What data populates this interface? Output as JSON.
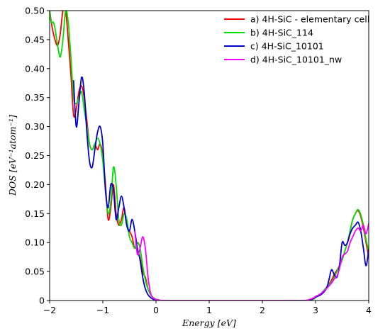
{
  "chart_data": {
    "type": "line",
    "xlabel": "Energy [eV]",
    "ylabel": "DOS [eV⁻¹atom⁻¹]",
    "xlim": [
      -2,
      4
    ],
    "ylim": [
      0,
      0.5
    ],
    "xticks": [
      -2,
      -1,
      0,
      1,
      2,
      3,
      4
    ],
    "yticks": [
      0,
      0.05,
      0.1,
      0.15,
      0.2,
      0.25,
      0.3,
      0.35,
      0.4,
      0.45,
      0.5
    ],
    "xtick_labels": [
      "−2",
      "−1",
      "0",
      "1",
      "2",
      "3",
      "4"
    ],
    "ytick_labels": [
      "0",
      "0.05",
      "0.10",
      "0.15",
      "0.20",
      "0.25",
      "0.30",
      "0.35",
      "0.40",
      "0.45",
      "0.50"
    ],
    "legend_position": "top-right",
    "grid": false,
    "series": [
      {
        "name": "a) 4H-SiC - elementary cell",
        "color": "#ff0000",
        "x": [
          -2.0,
          -1.95,
          -1.9,
          -1.85,
          -1.8,
          -1.75,
          -1.7,
          -1.65,
          -1.6,
          -1.55,
          -1.5,
          -1.45,
          -1.4,
          -1.35,
          -1.3,
          -1.25,
          -1.2,
          -1.15,
          -1.1,
          -1.05,
          -1.0,
          -0.95,
          -0.9,
          -0.85,
          -0.8,
          -0.75,
          -0.7,
          -0.65,
          -0.6,
          -0.55,
          -0.5,
          -0.45,
          -0.4,
          -0.35,
          -0.3,
          -0.25,
          -0.2,
          -0.15,
          -0.1,
          -0.05,
          0.0,
          0.05,
          0.1,
          0.2,
          0.5,
          1.0,
          1.5,
          2.0,
          2.5,
          2.8,
          2.95,
          3.0,
          3.1,
          3.2,
          3.3,
          3.35,
          3.4,
          3.45,
          3.5,
          3.55,
          3.6,
          3.65,
          3.7,
          3.75,
          3.8,
          3.85,
          3.9,
          3.95,
          4.0
        ],
        "y": [
          0.5,
          0.47,
          0.45,
          0.44,
          0.46,
          0.5,
          0.5,
          0.45,
          0.39,
          0.32,
          0.33,
          0.36,
          0.37,
          0.35,
          0.31,
          0.27,
          0.26,
          0.27,
          0.26,
          0.27,
          0.25,
          0.2,
          0.14,
          0.16,
          0.2,
          0.15,
          0.13,
          0.14,
          0.16,
          0.13,
          0.12,
          0.11,
          0.09,
          0.1,
          0.09,
          0.05,
          0.04,
          0.02,
          0.01,
          0.005,
          0.002,
          0.001,
          0.0,
          0.0,
          0.0,
          0.0,
          0.0,
          0.0,
          0.0,
          0.0,
          0.002,
          0.005,
          0.012,
          0.022,
          0.035,
          0.045,
          0.052,
          0.06,
          0.07,
          0.085,
          0.1,
          0.12,
          0.14,
          0.15,
          0.155,
          0.145,
          0.125,
          0.1,
          0.075
        ]
      },
      {
        "name": "b) 4H-SiC_114",
        "color": "#00e000",
        "x": [
          -2.0,
          -1.97,
          -1.93,
          -1.9,
          -1.85,
          -1.8,
          -1.75,
          -1.7,
          -1.65,
          -1.6,
          -1.55,
          -1.5,
          -1.45,
          -1.4,
          -1.35,
          -1.3,
          -1.25,
          -1.2,
          -1.15,
          -1.1,
          -1.05,
          -1.0,
          -0.95,
          -0.9,
          -0.85,
          -0.8,
          -0.75,
          -0.7,
          -0.65,
          -0.6,
          -0.55,
          -0.5,
          -0.45,
          -0.4,
          -0.35,
          -0.3,
          -0.25,
          -0.2,
          -0.15,
          -0.1,
          -0.05,
          0.0,
          0.05,
          0.1,
          0.2,
          0.5,
          1.0,
          1.5,
          2.0,
          2.5,
          2.8,
          2.95,
          3.0,
          3.1,
          3.2,
          3.3,
          3.35,
          3.4,
          3.45,
          3.5,
          3.55,
          3.6,
          3.65,
          3.7,
          3.75,
          3.8,
          3.85,
          3.9,
          3.95,
          4.0
        ],
        "y": [
          0.5,
          0.48,
          0.48,
          0.47,
          0.44,
          0.42,
          0.45,
          0.5,
          0.48,
          0.42,
          0.35,
          0.34,
          0.35,
          0.36,
          0.33,
          0.3,
          0.27,
          0.26,
          0.27,
          0.28,
          0.27,
          0.24,
          0.19,
          0.15,
          0.17,
          0.23,
          0.2,
          0.14,
          0.13,
          0.15,
          0.14,
          0.11,
          0.1,
          0.09,
          0.1,
          0.09,
          0.06,
          0.035,
          0.02,
          0.01,
          0.005,
          0.002,
          0.001,
          0.0,
          0.0,
          0.0,
          0.0,
          0.0,
          0.0,
          0.0,
          0.0,
          0.002,
          0.005,
          0.012,
          0.022,
          0.032,
          0.04,
          0.05,
          0.06,
          0.07,
          0.085,
          0.1,
          0.12,
          0.14,
          0.15,
          0.157,
          0.148,
          0.13,
          0.105,
          0.085
        ]
      },
      {
        "name": "c) 4H-SiC_10101",
        "color": "#0000cc",
        "x": [
          -1.55,
          -1.5,
          -1.45,
          -1.4,
          -1.35,
          -1.3,
          -1.25,
          -1.2,
          -1.15,
          -1.1,
          -1.05,
          -1.0,
          -0.95,
          -0.9,
          -0.85,
          -0.8,
          -0.75,
          -0.7,
          -0.65,
          -0.6,
          -0.55,
          -0.5,
          -0.45,
          -0.4,
          -0.35,
          -0.3,
          -0.25,
          -0.2,
          -0.15,
          -0.1,
          -0.05,
          0.0,
          0.05,
          0.1,
          0.2,
          0.5,
          1.0,
          1.5,
          2.0,
          2.5,
          2.8,
          2.95,
          3.0,
          3.1,
          3.2,
          3.25,
          3.3,
          3.35,
          3.4,
          3.45,
          3.5,
          3.55,
          3.6,
          3.65,
          3.7,
          3.75,
          3.8,
          3.85,
          3.9,
          3.95,
          4.0
        ],
        "y": [
          0.38,
          0.3,
          0.34,
          0.385,
          0.36,
          0.29,
          0.24,
          0.23,
          0.26,
          0.29,
          0.3,
          0.27,
          0.19,
          0.16,
          0.2,
          0.19,
          0.14,
          0.16,
          0.18,
          0.16,
          0.13,
          0.12,
          0.14,
          0.12,
          0.09,
          0.07,
          0.04,
          0.02,
          0.01,
          0.005,
          0.002,
          0.001,
          0.0,
          0.0,
          0.0,
          0.0,
          0.0,
          0.0,
          0.0,
          0.0,
          0.0,
          0.003,
          0.006,
          0.01,
          0.02,
          0.035,
          0.053,
          0.045,
          0.04,
          0.06,
          0.1,
          0.095,
          0.1,
          0.115,
          0.125,
          0.13,
          0.135,
          0.12,
          0.09,
          0.06,
          0.088
        ]
      },
      {
        "name": "d) 4H-SiC_10101_nw",
        "color": "#ff00ff",
        "x": [
          -0.4,
          -0.35,
          -0.3,
          -0.25,
          -0.2,
          -0.15,
          -0.1,
          -0.05,
          0.0,
          0.05,
          0.1,
          0.2,
          0.5,
          1.0,
          1.5,
          2.0,
          2.5,
          2.8,
          2.95,
          3.0,
          3.1,
          3.2,
          3.3,
          3.35,
          3.4,
          3.45,
          3.5,
          3.55,
          3.6,
          3.65,
          3.7,
          3.75,
          3.8,
          3.85,
          3.9,
          3.95,
          4.0
        ],
        "y": [
          0.12,
          0.08,
          0.09,
          0.11,
          0.09,
          0.04,
          0.012,
          0.004,
          0.002,
          0.001,
          0.0,
          0.0,
          0.0,
          0.0,
          0.0,
          0.0,
          0.0,
          0.0,
          0.004,
          0.007,
          0.012,
          0.02,
          0.03,
          0.037,
          0.042,
          0.055,
          0.075,
          0.08,
          0.085,
          0.1,
          0.11,
          0.12,
          0.125,
          0.12,
          0.13,
          0.115,
          0.133
        ]
      }
    ]
  }
}
